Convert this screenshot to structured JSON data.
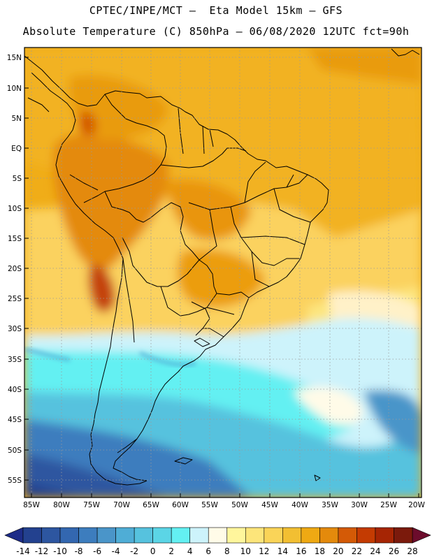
{
  "header": {
    "line1": "CPTEC/INPE/MCT –  Eta Model 15km – GFS",
    "line2": "Absolute Temperature (C) 850hPa – 06/08/2020 12UTC fct=90h"
  },
  "map": {
    "lat_labels": [
      "15N",
      "10N",
      "5N",
      "EQ",
      "5S",
      "10S",
      "15S",
      "20S",
      "25S",
      "30S",
      "35S",
      "40S",
      "45S",
      "50S",
      "55S"
    ],
    "lon_labels": [
      "85W",
      "80W",
      "75W",
      "70W",
      "65W",
      "60W",
      "55W",
      "50W",
      "45W",
      "40W",
      "35W",
      "30W",
      "25W",
      "20W"
    ]
  },
  "colorbar": {
    "labels": [
      "-14",
      "-12",
      "-10",
      "-8",
      "-6",
      "-4",
      "-2",
      "0",
      "2",
      "4",
      "6",
      "8",
      "10",
      "12",
      "14",
      "16",
      "18",
      "20",
      "22",
      "24",
      "26",
      "28"
    ],
    "colors": [
      "#23418f",
      "#2d56a0",
      "#3367b0",
      "#3d7dbe",
      "#4a95c9",
      "#4fadd6",
      "#56c2de",
      "#5bd5e6",
      "#63f0f2",
      "#cdf3fb",
      "#fffbe8",
      "#fff69c",
      "#fde57a",
      "#fad458",
      "#f2bf32",
      "#efa913",
      "#e48a0c",
      "#d45a06",
      "#c43b02",
      "#a62504",
      "#7b1a0c"
    ],
    "under_color": "#1d2c88",
    "over_color": "#6c0c2c"
  }
}
